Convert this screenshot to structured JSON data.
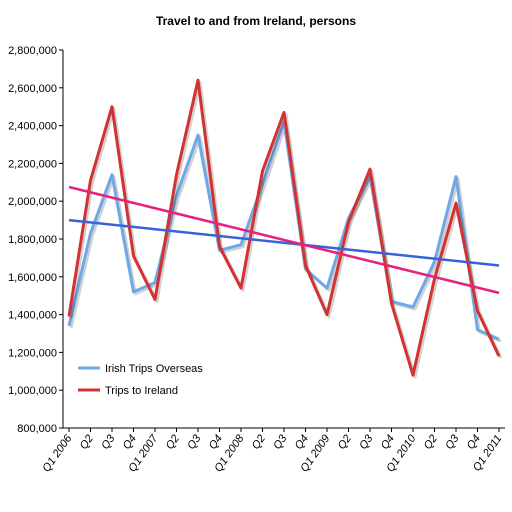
{
  "chart_data": {
    "type": "line",
    "title": "Travel to and from Ireland, persons",
    "xlabel": "",
    "ylabel": "",
    "ylim": [
      800000,
      2800000
    ],
    "yticks": [
      "800,000",
      "1,000,000",
      "1,200,000",
      "1,400,000",
      "1,600,000",
      "1,800,000",
      "2,000,000",
      "2,200,000",
      "2,400,000",
      "2,600,000",
      "2,800,000"
    ],
    "categories": [
      "Q1 2006",
      "Q2",
      "Q3",
      "Q4",
      "Q1 2007",
      "Q2",
      "Q3",
      "Q4",
      "Q1 2008",
      "Q2",
      "Q3",
      "Q4",
      "Q1 2009",
      "Q2",
      "Q3",
      "Q4",
      "Q1 2010",
      "Q2",
      "Q3",
      "Q4",
      "Q1 2011"
    ],
    "series": [
      {
        "name": "Irish Trips Overseas",
        "color": "#6fa8e6",
        "values": [
          1340000,
          1830000,
          2140000,
          1520000,
          1570000,
          2030000,
          2350000,
          1740000,
          1770000,
          2090000,
          2420000,
          1640000,
          1540000,
          1910000,
          2130000,
          1470000,
          1440000,
          1680000,
          2130000,
          1320000,
          1270000
        ]
      },
      {
        "name": "Trips to Ireland",
        "color": "#d43232",
        "values": [
          1390000,
          2110000,
          2500000,
          1710000,
          1480000,
          2140000,
          2640000,
          1760000,
          1540000,
          2160000,
          2470000,
          1660000,
          1400000,
          1890000,
          2170000,
          1460000,
          1080000,
          1590000,
          1990000,
          1420000,
          1180000
        ]
      }
    ],
    "trendlines": [
      {
        "of": "Irish Trips Overseas",
        "color": "#3a62d8",
        "start": 1900000,
        "end": 1660000
      },
      {
        "of": "Trips to Ireland",
        "color": "#e8207e",
        "start": 2075000,
        "end": 1515000
      }
    ],
    "legend": {
      "position": "bottom-left"
    }
  }
}
